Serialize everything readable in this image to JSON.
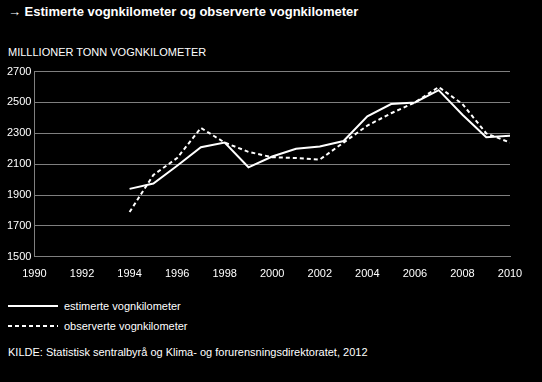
{
  "chart_data": {
    "type": "line",
    "title": "→ Estimerte vognkilometer og observerte vognkilometer",
    "ylabel": "MILLLIONER TONN VOGNKILOMETER",
    "source": "KILDE: Statistisk sentralbyrå og Klima- og forurensningsdirektoratet, 2012",
    "x": [
      1994,
      1995,
      1996,
      1997,
      1998,
      1999,
      2000,
      2001,
      2002,
      2003,
      2004,
      2005,
      2006,
      2007,
      2008,
      2009,
      2010
    ],
    "series": [
      {
        "name": "estimerte vognkilometer",
        "color": "#ffffff",
        "line_style": "solid",
        "values": [
          1940,
          1975,
          2090,
          2210,
          2240,
          2080,
          2150,
          2200,
          2215,
          2250,
          2410,
          2490,
          2500,
          2580,
          2420,
          2275,
          2285
        ]
      },
      {
        "name": "observerte vognkilometer",
        "color": "#ffffff",
        "line_style": "dashed",
        "values": [
          1790,
          2030,
          2140,
          2335,
          2240,
          2180,
          2145,
          2140,
          2130,
          2240,
          2350,
          2430,
          2500,
          2600,
          2490,
          2300,
          2240
        ]
      }
    ],
    "xlim": [
      1990,
      2010
    ],
    "xticks": [
      1990,
      1992,
      1994,
      1996,
      1998,
      2000,
      2002,
      2004,
      2006,
      2008,
      2010
    ],
    "ylim": [
      1500,
      2700
    ],
    "yticks": [
      1500,
      1700,
      1900,
      2100,
      2300,
      2500,
      2700
    ],
    "grid": true,
    "legend": "bottom"
  }
}
